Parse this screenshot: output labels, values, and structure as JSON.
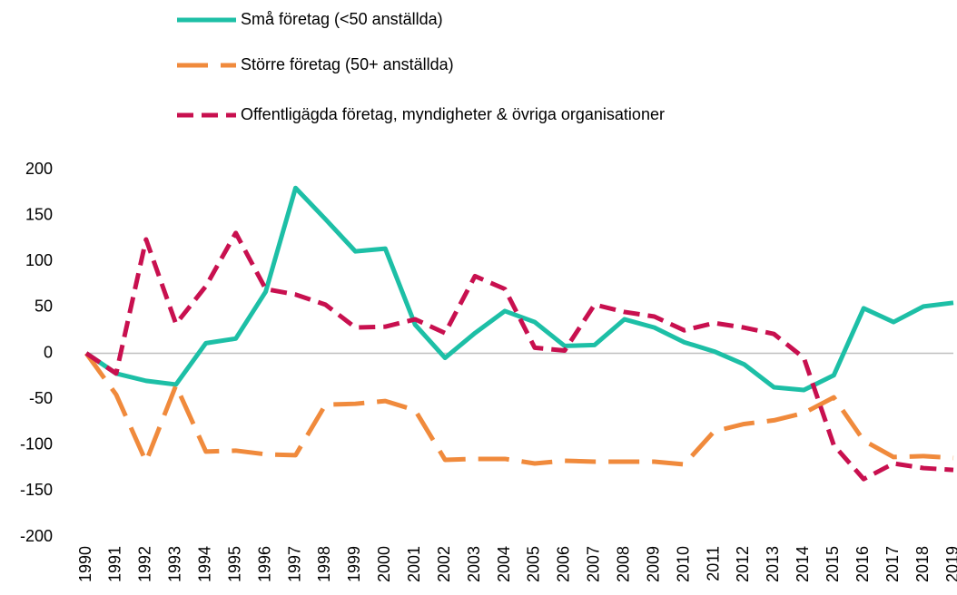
{
  "chart_data": {
    "type": "line",
    "categories": [
      "1990",
      "1991",
      "1992",
      "1993",
      "1994",
      "1995",
      "1996",
      "1997",
      "1998",
      "1999",
      "2000",
      "2001",
      "2002",
      "2003",
      "2004",
      "2005",
      "2006",
      "2007",
      "2008",
      "2009",
      "2010",
      "2011",
      "2012",
      "2013",
      "2014",
      "2015",
      "2016",
      "2017",
      "2018",
      "2019"
    ],
    "series": [
      {
        "name": "Små företag (<50 anställda)",
        "color": "#1dbfa6",
        "dash": "solid",
        "values": [
          0,
          -22,
          -30,
          -34,
          11,
          16,
          67,
          180,
          146,
          111,
          114,
          31,
          -5,
          22,
          46,
          34,
          8,
          9,
          37,
          28,
          12,
          2,
          -12,
          -37,
          -40,
          -24,
          49,
          34,
          51,
          55
        ]
      },
      {
        "name": "Större företag (50+ anställda)",
        "color": "#f08a3c",
        "dash": "long",
        "values": [
          0,
          -45,
          -118,
          -35,
          -107,
          -106,
          -110,
          -111,
          -56,
          -55,
          -52,
          -62,
          -116,
          -115,
          -115,
          -120,
          -117,
          -118,
          -118,
          -118,
          -121,
          -85,
          -77,
          -73,
          -65,
          -48,
          -95,
          -113,
          -112,
          -114
        ]
      },
      {
        "name": "Offentligägda företag, myndigheter & övriga organisationer",
        "color": "#c8104f",
        "dash": "short",
        "values": [
          0,
          -22,
          124,
          32,
          73,
          131,
          70,
          64,
          53,
          28,
          29,
          37,
          22,
          84,
          70,
          6,
          3,
          53,
          45,
          40,
          25,
          33,
          28,
          21,
          -5,
          -100,
          -137,
          -120,
          -125,
          -127
        ]
      }
    ],
    "ylim": [
      -200,
      200
    ],
    "yticks": [
      -200,
      -150,
      -100,
      -50,
      0,
      50,
      100,
      150,
      200
    ],
    "zero_line": true,
    "legend": "top"
  }
}
